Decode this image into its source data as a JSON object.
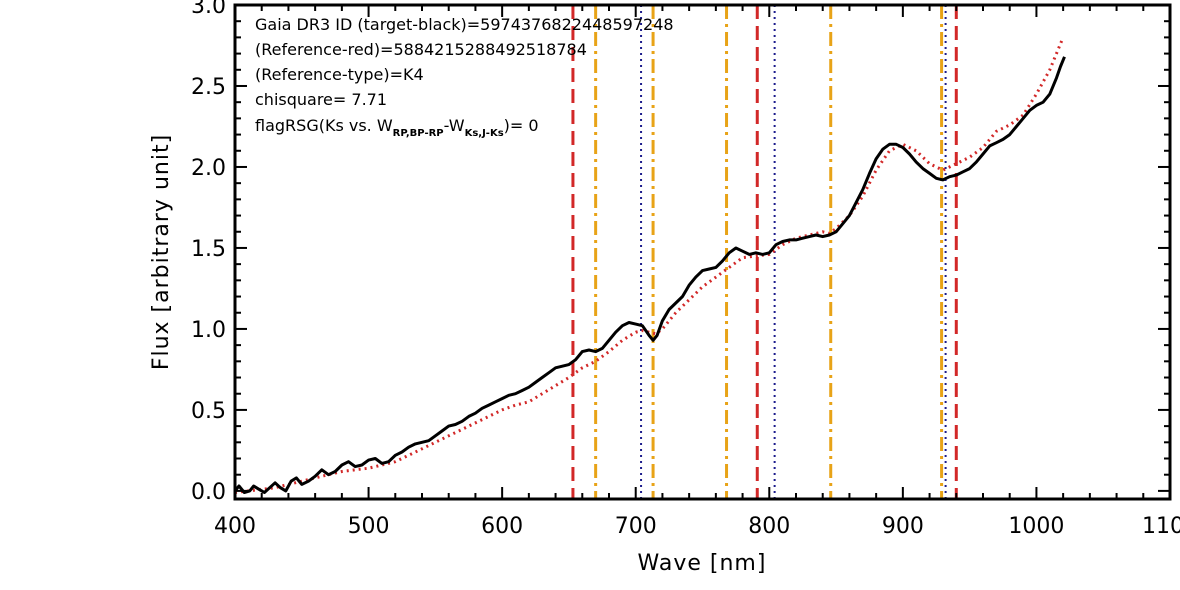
{
  "chart_data": {
    "type": "line",
    "xlabel": "Wave [nm]",
    "ylabel": "Flux [arbitrary unit]",
    "xlim": [
      400,
      1100
    ],
    "ylim": [
      -0.05,
      3.0
    ],
    "x_ticks": [
      "400",
      "500",
      "600",
      "700",
      "800",
      "900",
      "1000",
      "1100"
    ],
    "y_ticks": [
      "0.0",
      "0.5",
      "1.0",
      "1.5",
      "2.0",
      "2.5",
      "3.0"
    ],
    "annotations": {
      "line1": "Gaia DR3 ID (target-black)=5974376822448597248",
      "line2": "(Reference-red)=5884215288492518784",
      "line3": "(Reference-type)=K4",
      "line4": "chisquare= 7.71",
      "line5_a": "flagRSG(Ks vs. W",
      "line5_sub1": "RP,BP-RP",
      "line5_b": "-W",
      "line5_sub2": "Ks,J-Ks",
      "line5_c": ")= 0"
    },
    "series": [
      {
        "color": "#000000",
        "style": "solid",
        "x": [
          400,
          403,
          407,
          411,
          414,
          418,
          422,
          426,
          430,
          434,
          438,
          442,
          446,
          450,
          455,
          460,
          465,
          470,
          475,
          480,
          485,
          490,
          495,
          500,
          505,
          510,
          515,
          520,
          525,
          530,
          535,
          540,
          545,
          550,
          555,
          560,
          565,
          570,
          575,
          580,
          585,
          590,
          595,
          600,
          605,
          610,
          615,
          620,
          625,
          630,
          635,
          640,
          645,
          650,
          655,
          660,
          665,
          670,
          675,
          680,
          685,
          690,
          695,
          700,
          705,
          710,
          713,
          716,
          720,
          725,
          730,
          735,
          740,
          745,
          750,
          755,
          760,
          765,
          770,
          775,
          780,
          785,
          790,
          795,
          800,
          805,
          810,
          815,
          820,
          825,
          830,
          835,
          840,
          845,
          850,
          855,
          860,
          865,
          870,
          875,
          880,
          885,
          890,
          895,
          900,
          905,
          910,
          915,
          920,
          925,
          930,
          935,
          940,
          945,
          950,
          955,
          960,
          965,
          970,
          975,
          980,
          985,
          990,
          995,
          1000,
          1005,
          1010,
          1015,
          1018,
          1021
        ],
        "y": [
          0.0,
          0.03,
          -0.01,
          0.0,
          0.03,
          0.01,
          -0.01,
          0.02,
          0.05,
          0.02,
          0.0,
          0.06,
          0.08,
          0.04,
          0.06,
          0.09,
          0.13,
          0.1,
          0.12,
          0.16,
          0.18,
          0.15,
          0.16,
          0.19,
          0.2,
          0.17,
          0.18,
          0.22,
          0.24,
          0.27,
          0.29,
          0.3,
          0.31,
          0.34,
          0.37,
          0.4,
          0.41,
          0.43,
          0.46,
          0.48,
          0.51,
          0.53,
          0.55,
          0.57,
          0.59,
          0.6,
          0.62,
          0.64,
          0.67,
          0.7,
          0.73,
          0.76,
          0.77,
          0.78,
          0.81,
          0.86,
          0.87,
          0.86,
          0.88,
          0.93,
          0.98,
          1.02,
          1.04,
          1.03,
          1.02,
          0.96,
          0.93,
          0.96,
          1.05,
          1.12,
          1.16,
          1.2,
          1.27,
          1.32,
          1.36,
          1.37,
          1.38,
          1.42,
          1.47,
          1.5,
          1.48,
          1.46,
          1.47,
          1.46,
          1.47,
          1.52,
          1.54,
          1.55,
          1.55,
          1.56,
          1.57,
          1.58,
          1.57,
          1.58,
          1.6,
          1.65,
          1.7,
          1.78,
          1.86,
          1.96,
          2.05,
          2.11,
          2.14,
          2.14,
          2.12,
          2.08,
          2.03,
          1.99,
          1.96,
          1.93,
          1.92,
          1.94,
          1.95,
          1.97,
          1.99,
          2.03,
          2.08,
          2.13,
          2.15,
          2.17,
          2.2,
          2.25,
          2.3,
          2.35,
          2.38,
          2.4,
          2.45,
          2.55,
          2.62,
          2.68
        ]
      },
      {
        "color": "#d22828",
        "style": "dotted",
        "x": [
          400,
          410,
          420,
          430,
          440,
          450,
          460,
          470,
          480,
          490,
          500,
          510,
          520,
          530,
          540,
          550,
          560,
          570,
          580,
          590,
          600,
          610,
          620,
          630,
          640,
          650,
          660,
          670,
          680,
          690,
          700,
          705,
          710,
          715,
          720,
          730,
          740,
          750,
          760,
          770,
          780,
          790,
          800,
          810,
          820,
          830,
          840,
          845,
          850,
          860,
          870,
          880,
          890,
          900,
          910,
          920,
          930,
          940,
          950,
          960,
          970,
          980,
          990,
          1000,
          1010,
          1020
        ],
        "y": [
          -0.01,
          0.0,
          0.01,
          0.02,
          0.04,
          0.06,
          0.08,
          0.1,
          0.12,
          0.13,
          0.14,
          0.16,
          0.18,
          0.22,
          0.26,
          0.3,
          0.34,
          0.38,
          0.42,
          0.46,
          0.5,
          0.53,
          0.55,
          0.6,
          0.65,
          0.7,
          0.76,
          0.8,
          0.86,
          0.93,
          0.98,
          0.99,
          0.98,
          0.97,
          1.0,
          1.1,
          1.18,
          1.26,
          1.32,
          1.38,
          1.44,
          1.45,
          1.46,
          1.52,
          1.56,
          1.58,
          1.6,
          1.59,
          1.62,
          1.7,
          1.82,
          1.98,
          2.1,
          2.14,
          2.1,
          2.02,
          1.98,
          2.02,
          2.06,
          2.12,
          2.22,
          2.26,
          2.32,
          2.45,
          2.6,
          2.8
        ]
      }
    ],
    "vertical_lines": [
      {
        "x": 653,
        "color": "#d22828",
        "style": "dashed"
      },
      {
        "x": 791,
        "color": "#d22828",
        "style": "dashed"
      },
      {
        "x": 940,
        "color": "#d22828",
        "style": "dashed"
      },
      {
        "x": 670,
        "color": "#e8a317",
        "style": "dashdot"
      },
      {
        "x": 713,
        "color": "#e8a317",
        "style": "dashdot"
      },
      {
        "x": 768,
        "color": "#e8a317",
        "style": "dashdot"
      },
      {
        "x": 846,
        "color": "#e8a317",
        "style": "dashdot"
      },
      {
        "x": 929,
        "color": "#e8a317",
        "style": "dashdot"
      },
      {
        "x": 704,
        "color": "#1c1c8c",
        "style": "dotted"
      },
      {
        "x": 804,
        "color": "#1c1c8c",
        "style": "dotted"
      },
      {
        "x": 932,
        "color": "#1c1c8c",
        "style": "dotted"
      }
    ]
  }
}
